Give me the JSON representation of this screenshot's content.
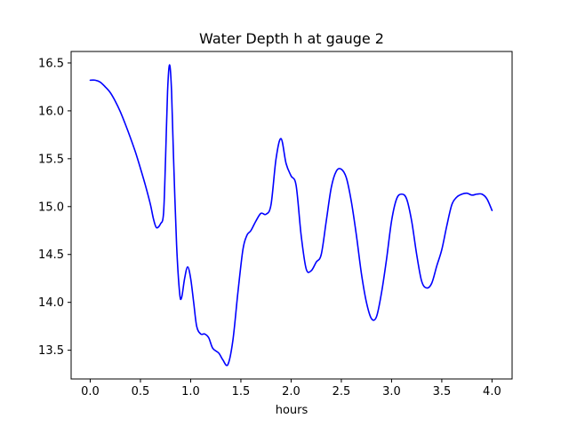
{
  "chart_data": {
    "type": "line",
    "title": "Water Depth h at gauge 2",
    "xlabel": "hours",
    "ylabel": "",
    "xlim": [
      -0.19,
      4.2
    ],
    "ylim": [
      13.2,
      16.62
    ],
    "xticks": [
      0.0,
      0.5,
      1.0,
      1.5,
      2.0,
      2.5,
      3.0,
      3.5,
      4.0
    ],
    "xtick_labels": [
      "0.0",
      "0.5",
      "1.0",
      "1.5",
      "2.0",
      "2.5",
      "3.0",
      "3.5",
      "4.0"
    ],
    "yticks": [
      13.5,
      14.0,
      14.5,
      15.0,
      15.5,
      16.0,
      16.5
    ],
    "ytick_labels": [
      "13.5",
      "14.0",
      "14.5",
      "15.0",
      "15.5",
      "16.0",
      "16.5"
    ],
    "grid": false,
    "series": [
      {
        "color": "#0000ff",
        "points": [
          [
            0.0,
            16.32
          ],
          [
            0.05,
            16.32
          ],
          [
            0.1,
            16.3
          ],
          [
            0.15,
            16.25
          ],
          [
            0.2,
            16.19
          ],
          [
            0.25,
            16.1
          ],
          [
            0.3,
            15.99
          ],
          [
            0.35,
            15.86
          ],
          [
            0.4,
            15.72
          ],
          [
            0.45,
            15.57
          ],
          [
            0.5,
            15.4
          ],
          [
            0.55,
            15.22
          ],
          [
            0.6,
            15.02
          ],
          [
            0.63,
            14.87
          ],
          [
            0.66,
            14.78
          ],
          [
            0.7,
            14.82
          ],
          [
            0.73,
            14.93
          ],
          [
            0.75,
            15.5
          ],
          [
            0.77,
            16.2
          ],
          [
            0.79,
            16.48
          ],
          [
            0.81,
            16.2
          ],
          [
            0.83,
            15.5
          ],
          [
            0.86,
            14.6
          ],
          [
            0.89,
            14.1
          ],
          [
            0.91,
            14.05
          ],
          [
            0.94,
            14.25
          ],
          [
            0.97,
            14.37
          ],
          [
            1.0,
            14.25
          ],
          [
            1.03,
            14.0
          ],
          [
            1.06,
            13.75
          ],
          [
            1.1,
            13.67
          ],
          [
            1.14,
            13.67
          ],
          [
            1.18,
            13.63
          ],
          [
            1.22,
            13.52
          ],
          [
            1.28,
            13.47
          ],
          [
            1.32,
            13.4
          ],
          [
            1.37,
            13.35
          ],
          [
            1.42,
            13.6
          ],
          [
            1.47,
            14.1
          ],
          [
            1.52,
            14.55
          ],
          [
            1.56,
            14.7
          ],
          [
            1.6,
            14.75
          ],
          [
            1.65,
            14.85
          ],
          [
            1.7,
            14.93
          ],
          [
            1.75,
            14.92
          ],
          [
            1.8,
            15.02
          ],
          [
            1.85,
            15.5
          ],
          [
            1.9,
            15.71
          ],
          [
            1.95,
            15.45
          ],
          [
            2.0,
            15.32
          ],
          [
            2.05,
            15.22
          ],
          [
            2.1,
            14.7
          ],
          [
            2.15,
            14.35
          ],
          [
            2.2,
            14.33
          ],
          [
            2.25,
            14.42
          ],
          [
            2.3,
            14.5
          ],
          [
            2.35,
            14.85
          ],
          [
            2.4,
            15.2
          ],
          [
            2.45,
            15.37
          ],
          [
            2.5,
            15.39
          ],
          [
            2.55,
            15.3
          ],
          [
            2.6,
            15.05
          ],
          [
            2.65,
            14.7
          ],
          [
            2.7,
            14.3
          ],
          [
            2.75,
            14.0
          ],
          [
            2.8,
            13.83
          ],
          [
            2.85,
            13.85
          ],
          [
            2.9,
            14.1
          ],
          [
            2.95,
            14.45
          ],
          [
            3.0,
            14.85
          ],
          [
            3.05,
            15.08
          ],
          [
            3.1,
            15.13
          ],
          [
            3.15,
            15.08
          ],
          [
            3.2,
            14.85
          ],
          [
            3.25,
            14.5
          ],
          [
            3.3,
            14.22
          ],
          [
            3.35,
            14.15
          ],
          [
            3.4,
            14.2
          ],
          [
            3.45,
            14.38
          ],
          [
            3.5,
            14.55
          ],
          [
            3.55,
            14.8
          ],
          [
            3.6,
            15.02
          ],
          [
            3.65,
            15.1
          ],
          [
            3.7,
            15.13
          ],
          [
            3.75,
            15.14
          ],
          [
            3.8,
            15.12
          ],
          [
            3.85,
            15.13
          ],
          [
            3.9,
            15.13
          ],
          [
            3.95,
            15.08
          ],
          [
            4.0,
            14.96
          ]
        ]
      }
    ]
  }
}
